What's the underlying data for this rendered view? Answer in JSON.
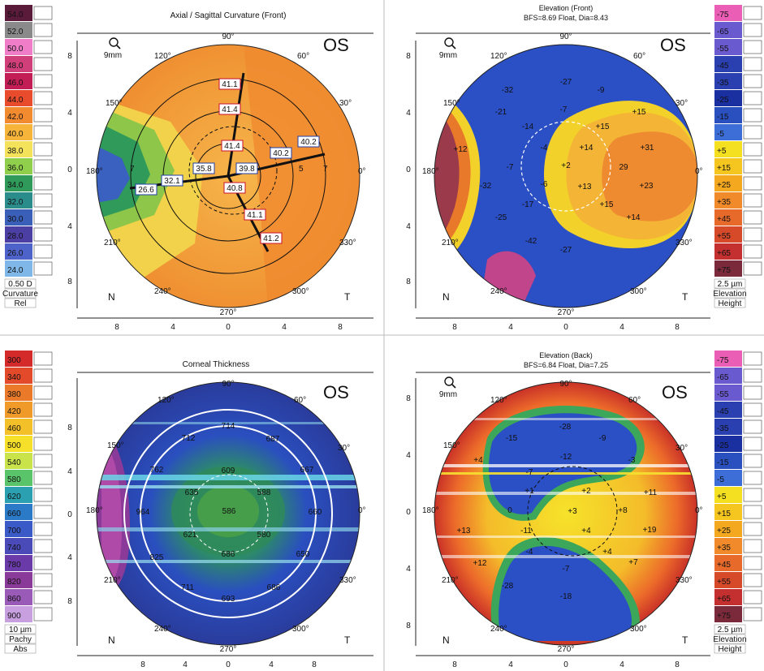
{
  "tl_panel": {
    "title": "Axial / Sagittal Curvature (Front)",
    "eye": "OS",
    "zoom": "9mm",
    "nasal": "N",
    "temporal": "T",
    "angles": [
      "90°",
      "60°",
      "30°",
      "0°",
      "330°",
      "300°",
      "270°",
      "240°",
      "210°",
      "180°",
      "150°",
      "120°"
    ],
    "yticks": [
      "8",
      "4",
      "0",
      "4",
      "8"
    ],
    "xticks": [
      "8",
      "4",
      "0",
      "4",
      "8"
    ],
    "values": [
      "41.1",
      "41.4",
      "41.4",
      "40.2",
      "40.2",
      "39.8",
      "35.8",
      "32.1",
      "26.6",
      "40.8",
      "41.1",
      "41.2"
    ],
    "ring_labels": [
      "7",
      "5",
      "3",
      "5",
      "7"
    ]
  },
  "tl_scale": {
    "entries": [
      "54.0",
      "52.0",
      "50.0",
      "48.0",
      "46.0",
      "44.0",
      "42.0",
      "40.0",
      "38.0",
      "36.0",
      "34.0",
      "32.0",
      "30.0",
      "28.0",
      "26.0",
      "24.0"
    ],
    "colors": [
      "#5a1a3a",
      "#8a8a8a",
      "#f07dc8",
      "#d13f7a",
      "#c21d55",
      "#e84c2c",
      "#f28a30",
      "#f7b43a",
      "#f4e35a",
      "#8fcf4c",
      "#2f9a5a",
      "#2b8c8c",
      "#3a5fb8",
      "#4b3fa3",
      "#4e63c9",
      "#7fb8e8"
    ],
    "step": "0.50 D",
    "unit": "Curvature",
    "mode": "Rel"
  },
  "tr_panel": {
    "title": "Elevation (Front)",
    "subtitle": "BFS=8.69 Float, Dia=8.43",
    "eye": "OS",
    "zoom": "9mm",
    "nasal": "N",
    "temporal": "T",
    "values": [
      "-27",
      "-32",
      "-9",
      "-21",
      "-14",
      "-7",
      "+15",
      "+15",
      "+12",
      "-7",
      "+14",
      "+31",
      "-4",
      "+2",
      "29",
      "-32",
      "+13",
      "+23",
      "-6",
      "-17",
      "+15",
      "-25",
      "+14",
      "-42",
      "-27"
    ]
  },
  "tr_scale": {
    "entries": [
      "-75",
      "-65",
      "-55",
      "-45",
      "-35",
      "-25",
      "-15",
      "-5",
      "+5",
      "+15",
      "+25",
      "+35",
      "+45",
      "+55",
      "+65",
      "+75"
    ],
    "colors": [
      "#ea5fb5",
      "#6a5ad0",
      "#6a5ad0",
      "#2a3fb0",
      "#2a3fb0",
      "#1a2fa0",
      "#2a50c0",
      "#3d6dd6",
      "#f4e020",
      "#f6c620",
      "#f4a820",
      "#f18a2a",
      "#e86a2a",
      "#d64a2a",
      "#c43030",
      "#7a2a3a"
    ],
    "step": "2.5 µm",
    "unit": "Elevation",
    "mode": "Height"
  },
  "bl_panel": {
    "title": "Corneal Thickness",
    "eye": "OS",
    "values": [
      "714",
      "712",
      "687",
      "609",
      "762",
      "635",
      "588",
      "667",
      "964",
      "586",
      "660",
      "621",
      "580",
      "825",
      "686",
      "650",
      "711",
      "686",
      "693"
    ]
  },
  "bl_scale": {
    "entries": [
      "300",
      "340",
      "380",
      "420",
      "460",
      "500",
      "540",
      "580",
      "620",
      "660",
      "700",
      "740",
      "780",
      "820",
      "860",
      "900"
    ],
    "colors": [
      "#d52a2a",
      "#e24a2a",
      "#ea7a2a",
      "#f09a2a",
      "#f4c02a",
      "#f6e02a",
      "#c8e44a",
      "#5ac46a",
      "#2aa0b0",
      "#2a7ac8",
      "#3a5ac8",
      "#4a4ab8",
      "#6a3aa8",
      "#8a3a98",
      "#9a5ab8",
      "#c8a0e0"
    ],
    "step": "10 µm",
    "unit": "Pachy",
    "mode": "Abs"
  },
  "br_panel": {
    "title": "Elevation (Back)",
    "subtitle": "BFS=6.84 Float, Dia=7.25",
    "eye": "OS",
    "values": [
      "-28",
      "-15",
      "-9",
      "-12",
      "-3",
      "+4",
      "-7",
      "+1",
      "+2",
      "+11",
      "0",
      "+3",
      "+8",
      "+13",
      "-11",
      "+4",
      "+19",
      "+12",
      "-4",
      "+4",
      "+7",
      "-28",
      "-7",
      "-18"
    ]
  },
  "br_scale": {
    "entries": [
      "-75",
      "-65",
      "-55",
      "-45",
      "-35",
      "-25",
      "-15",
      "-5",
      "+5",
      "+15",
      "+25",
      "+35",
      "+45",
      "+55",
      "+65",
      "+75"
    ],
    "colors": [
      "#ea5fb5",
      "#6a5ad0",
      "#6a5ad0",
      "#2a3fb0",
      "#2a3fb0",
      "#1a2fa0",
      "#2a50c0",
      "#3d6dd6",
      "#f4e020",
      "#f6c620",
      "#f4a820",
      "#f18a2a",
      "#e86a2a",
      "#d64a2a",
      "#c43030",
      "#7a2a3a"
    ],
    "step": "2.5 µm",
    "unit": "Elevation",
    "mode": "Height"
  },
  "colors": {
    "orange": "#f2a040",
    "blue_map": "#2b4fc4",
    "yellow": "#f6e030",
    "red": "#c03428",
    "green": "#3ca65a"
  }
}
